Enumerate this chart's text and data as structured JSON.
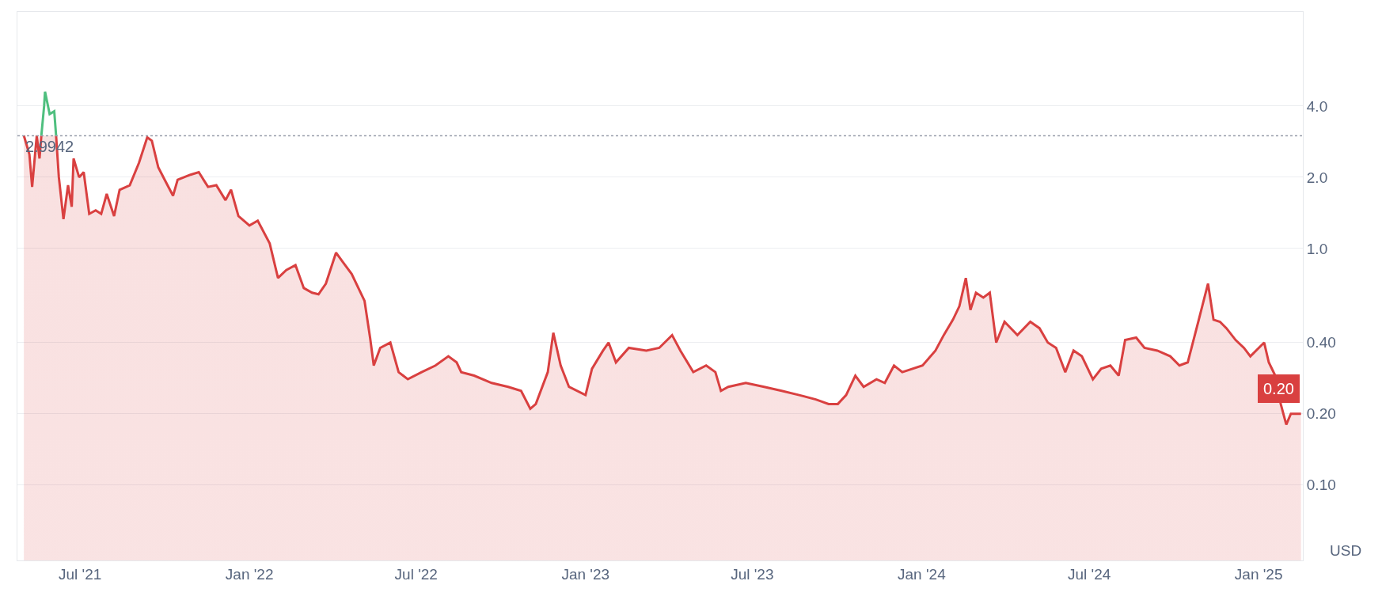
{
  "chart_data": {
    "type": "line",
    "log": true,
    "grid": "y",
    "ylabel": "USD",
    "xlim": [
      "2021-04-24",
      "2025-02-18"
    ],
    "ylim": [
      0.048,
      10
    ],
    "xticks": [
      {
        "value": "2021-07-01",
        "label": "Jul '21"
      },
      {
        "value": "2022-01-01",
        "label": "Jan '22"
      },
      {
        "value": "2022-07-01",
        "label": "Jul '22"
      },
      {
        "value": "2023-01-01",
        "label": "Jan '23"
      },
      {
        "value": "2023-07-01",
        "label": "Jul '23"
      },
      {
        "value": "2024-01-01",
        "label": "Jan '24"
      },
      {
        "value": "2024-07-01",
        "label": "Jul '24"
      },
      {
        "value": "2025-01-01",
        "label": "Jan '25"
      }
    ],
    "yticks": [
      {
        "value": 0.1,
        "label": "0.10"
      },
      {
        "value": 0.2,
        "label": "0.20"
      },
      {
        "value": 0.4,
        "label": "0.40"
      },
      {
        "value": 1,
        "label": "1.0"
      },
      {
        "value": 2,
        "label": "2.0"
      },
      {
        "value": 4,
        "label": "4.0"
      }
    ],
    "ref_lines": [
      {
        "axis": "y",
        "value": 2.9942,
        "label": "2.9942",
        "color": "#9aa0ad",
        "line_style": "dotted"
      }
    ],
    "annotations": [
      {
        "text": "0.20",
        "x": "2025-02-16",
        "y": 0.2
      }
    ],
    "series": [
      {
        "type": "area",
        "color": "#d94040",
        "x": [
          "2021-05-01",
          "2021-05-07",
          "2021-05-10",
          "2021-05-15",
          "2021-05-18",
          "2021-05-20",
          "2021-05-22",
          "2021-06-05",
          "2021-06-08",
          "2021-06-13",
          "2021-06-18",
          "2021-06-22",
          "2021-06-24",
          "2021-06-30",
          "2021-07-05",
          "2021-07-11",
          "2021-07-18",
          "2021-07-24",
          "2021-07-30",
          "2021-08-07",
          "2021-08-13",
          "2021-08-24",
          "2021-09-03",
          "2021-09-12",
          "2021-09-17",
          "2021-09-24",
          "2021-10-01",
          "2021-10-10",
          "2021-10-15",
          "2021-10-29",
          "2021-11-07",
          "2021-11-17",
          "2021-11-26",
          "2021-12-06",
          "2021-12-12",
          "2021-12-20",
          "2022-01-01",
          "2022-01-10",
          "2022-01-23",
          "2022-02-01",
          "2022-02-10",
          "2022-02-20",
          "2022-03-01",
          "2022-03-10",
          "2022-03-17",
          "2022-03-25",
          "2022-04-05",
          "2022-04-12",
          "2022-04-22",
          "2022-05-06",
          "2022-05-12",
          "2022-05-16",
          "2022-05-23",
          "2022-06-03",
          "2022-06-12",
          "2022-06-22",
          "2022-07-07",
          "2022-07-22",
          "2022-08-05",
          "2022-08-14",
          "2022-08-19",
          "2022-09-02",
          "2022-09-21",
          "2022-10-09",
          "2022-10-23",
          "2022-11-02",
          "2022-11-08",
          "2022-11-21",
          "2022-11-27",
          "2022-12-05",
          "2022-12-14",
          "2023-01-01",
          "2023-01-08",
          "2023-01-20",
          "2023-01-26",
          "2023-02-03",
          "2023-02-17",
          "2023-03-08",
          "2023-03-22",
          "2023-04-05",
          "2023-04-14",
          "2023-04-28",
          "2023-05-12",
          "2023-05-22",
          "2023-05-28",
          "2023-06-05",
          "2023-06-24",
          "2023-07-14",
          "2023-08-02",
          "2023-08-21",
          "2023-09-08",
          "2023-09-22",
          "2023-10-02",
          "2023-10-11",
          "2023-10-21",
          "2023-10-30",
          "2023-11-13",
          "2023-11-22",
          "2023-12-02",
          "2023-12-11",
          "2024-01-02",
          "2024-01-16",
          "2024-01-25",
          "2024-02-04",
          "2024-02-11",
          "2024-02-18",
          "2024-02-23",
          "2024-02-29",
          "2024-03-08",
          "2024-03-15",
          "2024-03-22",
          "2024-03-31",
          "2024-04-14",
          "2024-04-28",
          "2024-05-08",
          "2024-05-17",
          "2024-05-26",
          "2024-06-05",
          "2024-06-14",
          "2024-06-23",
          "2024-07-05",
          "2024-07-14",
          "2024-07-24",
          "2024-08-02",
          "2024-08-09",
          "2024-08-21",
          "2024-08-30",
          "2024-09-13",
          "2024-09-27",
          "2024-10-07",
          "2024-10-16",
          "2024-10-28",
          "2024-11-07",
          "2024-11-13",
          "2024-11-20",
          "2024-11-27",
          "2024-12-07",
          "2024-12-16",
          "2024-12-23",
          "2025-01-07",
          "2025-01-12",
          "2025-01-19",
          "2025-01-25",
          "2025-01-31",
          "2025-02-05",
          "2025-02-11",
          "2025-02-16"
        ],
        "values": [
          3.0,
          2.5,
          1.82,
          3.0,
          2.4,
          3.0,
          null,
          3.0,
          2.0,
          1.33,
          1.85,
          1.5,
          2.4,
          2.0,
          2.1,
          1.4,
          1.45,
          1.4,
          1.7,
          1.37,
          1.77,
          1.85,
          2.3,
          2.95,
          2.85,
          2.2,
          1.95,
          1.67,
          1.95,
          2.05,
          2.1,
          1.82,
          1.85,
          1.6,
          1.77,
          1.37,
          1.25,
          1.31,
          1.05,
          0.75,
          0.81,
          0.85,
          0.68,
          0.65,
          0.64,
          0.71,
          0.96,
          0.88,
          0.78,
          0.6,
          0.42,
          0.32,
          0.38,
          0.4,
          0.3,
          0.28,
          0.3,
          0.32,
          0.35,
          0.33,
          0.3,
          0.29,
          0.27,
          0.26,
          0.25,
          0.21,
          0.22,
          0.3,
          0.44,
          0.32,
          0.26,
          0.24,
          0.31,
          0.37,
          0.4,
          0.33,
          0.38,
          0.37,
          0.38,
          0.43,
          0.37,
          0.3,
          0.32,
          0.3,
          0.25,
          0.26,
          0.27,
          0.26,
          0.25,
          0.24,
          0.23,
          0.22,
          0.22,
          0.24,
          0.29,
          0.26,
          0.28,
          0.27,
          0.32,
          0.3,
          0.32,
          0.37,
          0.43,
          0.5,
          0.57,
          0.75,
          0.55,
          0.65,
          0.62,
          0.65,
          0.4,
          0.49,
          0.43,
          0.49,
          0.46,
          0.4,
          0.38,
          0.3,
          0.37,
          0.35,
          0.28,
          0.31,
          0.32,
          0.29,
          0.41,
          0.42,
          0.38,
          0.37,
          0.35,
          0.32,
          0.33,
          0.5,
          0.71,
          0.5,
          0.49,
          0.46,
          0.41,
          0.38,
          0.35,
          0.4,
          0.33,
          0.29,
          0.22,
          0.18,
          0.2,
          0.2,
          0.2
        ]
      },
      {
        "color": "#4fbf7f",
        "x": [
          "2021-05-20",
          "2021-05-23",
          "2021-05-24",
          "2021-05-29",
          "2021-06-03",
          "2021-06-05"
        ],
        "values": [
          3.0,
          4.0,
          4.6,
          3.7,
          3.8,
          3.0
        ]
      }
    ]
  }
}
